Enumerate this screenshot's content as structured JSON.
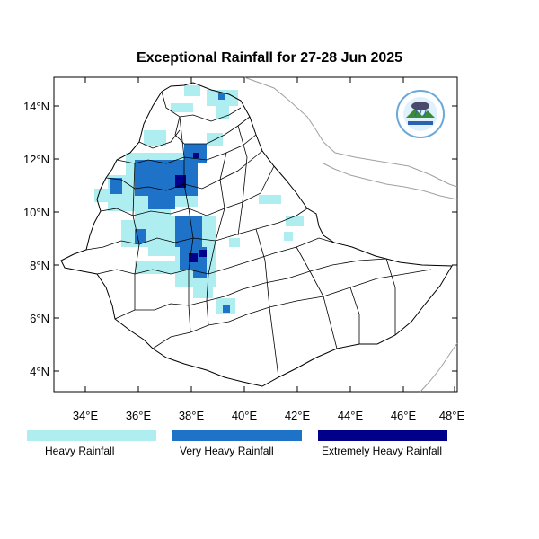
{
  "map": {
    "title": "Exceptional Rainfall for 27-28 Jun 2025",
    "lat_ticks": [
      "4°N",
      "6°N",
      "8°N",
      "10°N",
      "12°N",
      "14°N"
    ],
    "lon_ticks": [
      "34°E",
      "36°E",
      "38°E",
      "40°E",
      "42°E",
      "44°E",
      "46°E",
      "48°E"
    ],
    "extent": {
      "lon": [
        32.8,
        48.2
      ],
      "lat": [
        3.2,
        14.9
      ]
    }
  },
  "legend": {
    "items": [
      {
        "label": "Heavy Rainfall",
        "color": "#aeeef0"
      },
      {
        "label": "Very Heavy Rainfall",
        "color": "#1e73c8"
      },
      {
        "label": "Extremely Heavy Rainfall",
        "color": "#00008b"
      }
    ]
  },
  "logo": {
    "icon": "meteorology-institute-logo"
  }
}
